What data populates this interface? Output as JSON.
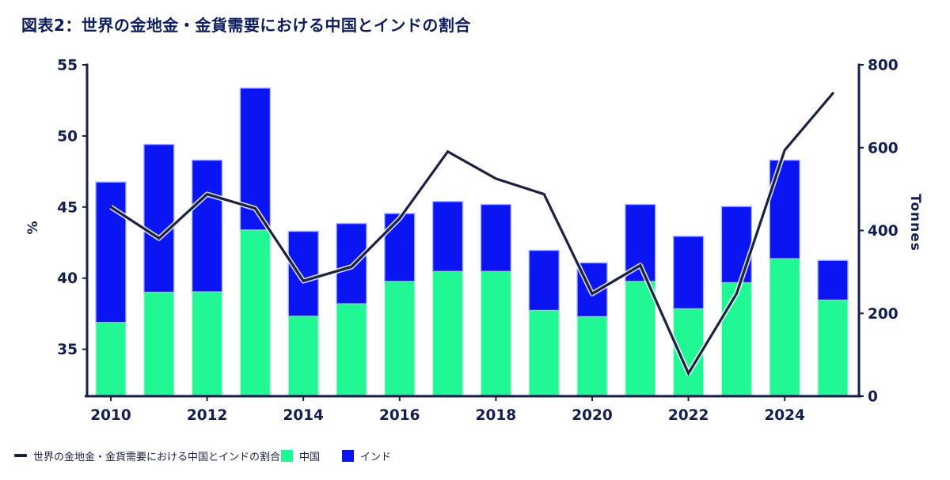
{
  "title": "図表2：世界の金地金・金貨需要における中国とインドの割合",
  "chart_data": {
    "type": "bar",
    "subtype": "stacked-bars-with-line-overlay",
    "categories": [
      "2010",
      "2011",
      "2012",
      "2013",
      "2014",
      "2015",
      "2016",
      "2017",
      "2018",
      "2019",
      "2020",
      "2021",
      "2022",
      "2023",
      "2024",
      "2025"
    ],
    "bar_series": [
      {
        "name": "中国",
        "unit": "Tonnes",
        "axis": "right",
        "color": "#22f795",
        "values": [
          178,
          251,
          252,
          401,
          193,
          223,
          277,
          301,
          301,
          207,
          192,
          277,
          211,
          274,
          332,
          232
        ]
      },
      {
        "name": "インド",
        "unit": "Tonnes",
        "axis": "right",
        "color": "#0a15f2",
        "values": [
          339,
          357,
          318,
          343,
          205,
          194,
          164,
          169,
          162,
          145,
          130,
          186,
          175,
          184,
          238,
          96
        ]
      }
    ],
    "line_series": {
      "name": "世界の金地金・金貨需要における中国とインドの割合",
      "unit": "%",
      "axis": "left",
      "color": "#1a2240",
      "values": [
        45.0,
        42.8,
        45.9,
        44.9,
        39.8,
        40.8,
        44.2,
        48.9,
        47.0,
        45.9,
        38.9,
        40.9,
        33.3,
        38.9,
        49.0,
        53.0
      ]
    },
    "left_axis": {
      "label": "%",
      "ticks": [
        55,
        50,
        45,
        40,
        35
      ],
      "min": 31.7,
      "max": 55
    },
    "right_axis": {
      "label": "Tonnes",
      "ticks": [
        800,
        600,
        400,
        200,
        0
      ],
      "min": 0,
      "max": 800
    },
    "x_axis": {
      "tick_labels": [
        "2010",
        "2012",
        "2014",
        "2016",
        "2018",
        "2020",
        "2022",
        "2024"
      ]
    },
    "grid": false,
    "legend_position": "bottom"
  },
  "legend": {
    "line_label": "世界の金地金・金貨需要における中国とインドの割合",
    "china_label": "中国",
    "india_label": "インド"
  },
  "colors": {
    "china_green": "#22f795",
    "india_blue": "#0a15f2",
    "line_navy": "#1a2240",
    "axis_navy": "#16204a",
    "text_navy": "#131f4d",
    "title_navy": "#0d1c5e",
    "bar_border_blue": "#aab4f6",
    "bar_border_green": "#b9f7d9"
  }
}
